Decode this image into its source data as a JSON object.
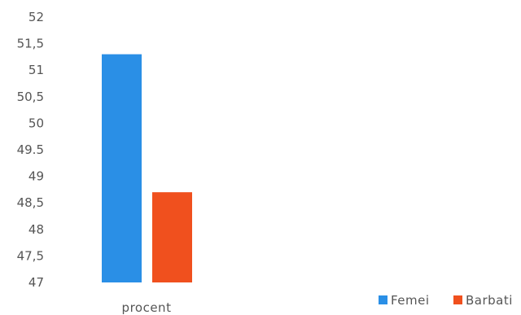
{
  "chart_data": {
    "type": "bar",
    "categories": [
      "procent"
    ],
    "series": [
      {
        "name": "Femei",
        "values": [
          51.3
        ],
        "color": "#2a8fe6"
      },
      {
        "name": "Barbati",
        "values": [
          48.7
        ],
        "color": "#f0501e"
      }
    ],
    "title": "",
    "xlabel": "",
    "ylabel": "",
    "ylim": [
      47,
      52
    ],
    "yticks": [
      "47",
      "47,5",
      "48",
      "48,5",
      "49",
      "49.5",
      "50",
      "50,5",
      "51",
      "51,5",
      "52"
    ],
    "grid": false,
    "legend": "bottom-right"
  }
}
